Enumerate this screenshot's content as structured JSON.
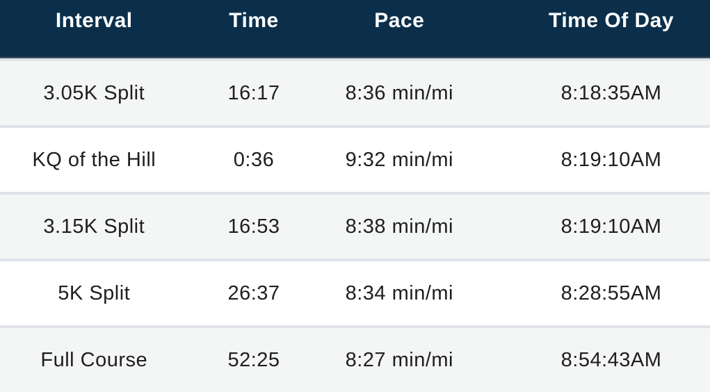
{
  "table": {
    "columns": [
      {
        "key": "interval",
        "label": "Interval"
      },
      {
        "key": "time",
        "label": "Time"
      },
      {
        "key": "pace",
        "label": "Pace"
      },
      {
        "key": "time_of_day",
        "label": "Time Of Day"
      }
    ],
    "rows": [
      {
        "interval": "3.05K Split",
        "time": "16:17",
        "pace": "8:36 min/mi",
        "time_of_day": "8:18:35AM"
      },
      {
        "interval": "KQ of the Hill",
        "time": "0:36",
        "pace": "9:32 min/mi",
        "time_of_day": "8:19:10AM"
      },
      {
        "interval": "3.15K Split",
        "time": "16:53",
        "pace": "8:38 min/mi",
        "time_of_day": "8:19:10AM"
      },
      {
        "interval": "5K Split",
        "time": "26:37",
        "pace": "8:34 min/mi",
        "time_of_day": "8:28:55AM"
      },
      {
        "interval": "Full Course",
        "time": "52:25",
        "pace": "8:27 min/mi",
        "time_of_day": "8:54:43AM"
      }
    ]
  },
  "colors": {
    "header_bg": "#0b2f4b",
    "header_text": "#ffffff",
    "header_border": "#47525e",
    "row_bg": "#ffffff",
    "row_alt_bg": "#f4f5f5",
    "divider": "#e1e3ea",
    "cell_text": "#1e1e1e"
  }
}
